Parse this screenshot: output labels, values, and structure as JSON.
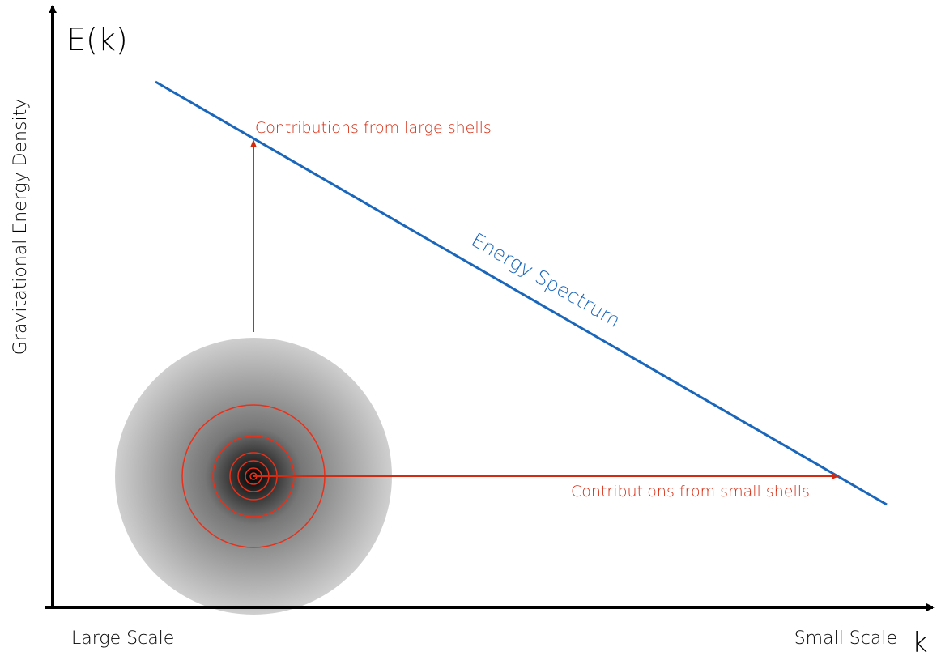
{
  "axes": {
    "y_label": "E(k)",
    "y_title": "Gravitational Energy Density",
    "x_left": "Large Scale",
    "x_right": "Small Scale",
    "x_label": "k"
  },
  "spectrum": {
    "label": "Energy Spectrum"
  },
  "annotations": {
    "large_shells": "Contributions from large shells",
    "small_shells": "Contributions from small shells"
  }
}
